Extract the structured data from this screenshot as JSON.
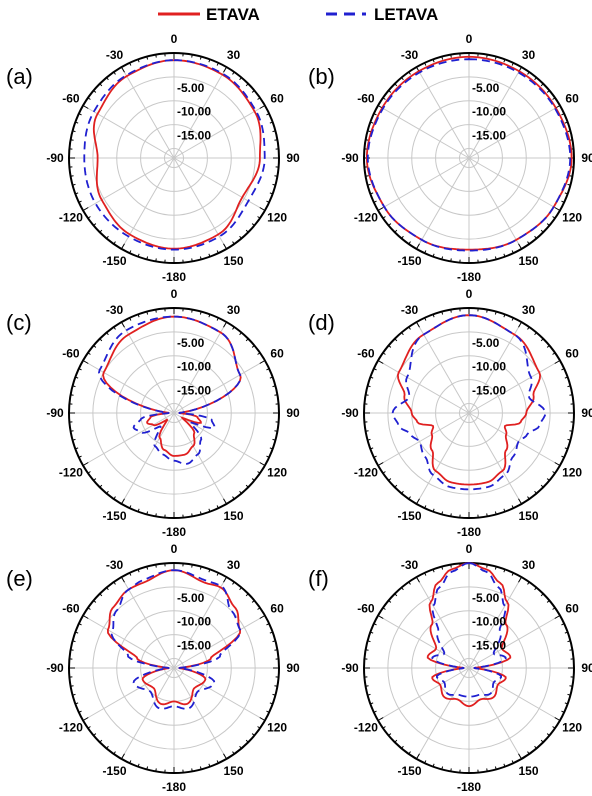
{
  "legend": [
    {
      "label": "ETAVA",
      "color": "#e02020",
      "dash": "solid"
    },
    {
      "label": "LETAVA",
      "color": "#2020d0",
      "dash": "dashed"
    }
  ],
  "chart_data": [
    {
      "type": "polar",
      "panel": "(a)",
      "angle_ticks": [
        "0",
        "30",
        "60",
        "90",
        "120",
        "150",
        "-180",
        "-150",
        "-120",
        "-90",
        "-60",
        "-30"
      ],
      "radial_tick_labels": [
        "-5.00",
        "-10.00",
        "-15.00"
      ],
      "rlim": [
        -22,
        0
      ],
      "theta": [
        0,
        30,
        60,
        90,
        120,
        150,
        180,
        -150,
        -120,
        -90,
        -60,
        -30
      ],
      "series": [
        {
          "name": "ETAVA",
          "r": [
            -1.5,
            -1.8,
            -2.5,
            -4,
            -5.5,
            -3.5,
            -3,
            -3.5,
            -4.5,
            -6,
            -3.5,
            -2.2
          ]
        },
        {
          "name": "LETAVA",
          "r": [
            -1.5,
            -1.6,
            -2.2,
            -3,
            -4,
            -3,
            -2.8,
            -3,
            -3,
            -3.2,
            -2.6,
            -2
          ]
        }
      ]
    },
    {
      "type": "polar",
      "panel": "(b)",
      "angle_ticks": [
        "0",
        "30",
        "60",
        "90",
        "120",
        "150",
        "-180",
        "-150",
        "-120",
        "-90",
        "-60",
        "-30"
      ],
      "radial_tick_labels": [
        "-5.00",
        "-10.00",
        "-15.00"
      ],
      "rlim": [
        -22,
        0
      ],
      "theta": [
        0,
        30,
        60,
        90,
        120,
        150,
        180,
        -150,
        -120,
        -90,
        -60,
        -30
      ],
      "series": [
        {
          "name": "ETAVA",
          "r": [
            -0.8,
            -1,
            -1,
            -0.5,
            -1.5,
            -2.2,
            -2.8,
            -2.2,
            -1.5,
            -0.6,
            -1,
            -1
          ]
        },
        {
          "name": "LETAVA",
          "r": [
            -1.3,
            -1.3,
            -1.2,
            -0.8,
            -1.5,
            -2.2,
            -2.6,
            -2.2,
            -1.5,
            -0.8,
            -1.2,
            -1.3
          ]
        }
      ]
    },
    {
      "type": "polar",
      "panel": "(c)",
      "angle_ticks": [
        "0",
        "30",
        "60",
        "90",
        "120",
        "150",
        "-180",
        "-150",
        "-120",
        "-90",
        "-60",
        "-30"
      ],
      "radial_tick_labels": [
        "-5.00",
        "-10.00",
        "-15.00"
      ],
      "rlim": [
        -22,
        0
      ],
      "theta": [
        0,
        30,
        60,
        90,
        100,
        110,
        120,
        135,
        150,
        165,
        180,
        -165,
        -150,
        -135,
        -120,
        -110,
        -100,
        -90,
        -60,
        -30
      ],
      "series": [
        {
          "name": "ETAVA",
          "r": [
            -1.8,
            -2.5,
            -6,
            -21,
            -17,
            -16,
            -20,
            -16,
            -14,
            -13,
            -13,
            -14,
            -16,
            -20,
            -17,
            -16,
            -17,
            -21,
            -5,
            -3
          ]
        },
        {
          "name": "LETAVA",
          "r": [
            -1.8,
            -2.5,
            -6,
            -21,
            -14,
            -13,
            -18,
            -14,
            -12,
            -11,
            -12,
            -13,
            -14,
            -18,
            -14,
            -13,
            -15,
            -21,
            -4,
            -2
          ]
        }
      ]
    },
    {
      "type": "polar",
      "panel": "(d)",
      "angle_ticks": [
        "0",
        "30",
        "60",
        "90",
        "120",
        "150",
        "-180",
        "-150",
        "-120",
        "-90",
        "-60",
        "-30"
      ],
      "radial_tick_labels": [
        "-5.00",
        "-10.00",
        "-15.00"
      ],
      "rlim": [
        -22,
        0
      ],
      "theta": [
        0,
        30,
        60,
        75,
        90,
        100,
        110,
        120,
        135,
        150,
        165,
        180,
        -165,
        -150,
        -135,
        -120,
        -110,
        -100,
        -90,
        -75,
        -60,
        -30
      ],
      "series": [
        {
          "name": "ETAVA",
          "r": [
            -1.5,
            -3,
            -5,
            -8,
            -10,
            -11,
            -14,
            -13,
            -11,
            -8,
            -7,
            -7,
            -7,
            -8,
            -11,
            -13,
            -14,
            -11,
            -10,
            -8,
            -5,
            -3
          ]
        },
        {
          "name": "LETAVA",
          "r": [
            -1.5,
            -3,
            -7,
            -9,
            -6,
            -7,
            -9,
            -10,
            -9,
            -7,
            -6,
            -6,
            -6,
            -7,
            -9,
            -10,
            -9,
            -7,
            -6,
            -9,
            -7,
            -3
          ]
        }
      ]
    },
    {
      "type": "polar",
      "panel": "(e)",
      "angle_ticks": [
        "0",
        "30",
        "60",
        "90",
        "120",
        "150",
        "-180",
        "-150",
        "-120",
        "-90",
        "-60",
        "-30"
      ],
      "radial_tick_labels": [
        "-5.00",
        "-10.00",
        "-15.00"
      ],
      "rlim": [
        -22,
        0
      ],
      "theta": [
        0,
        20,
        30,
        45,
        60,
        75,
        90,
        110,
        135,
        160,
        180,
        -160,
        -135,
        -110,
        -90,
        -75,
        -60,
        -45,
        -30,
        -20
      ],
      "series": [
        {
          "name": "ETAVA",
          "r": [
            -1.5,
            -3,
            -2.5,
            -4,
            -6,
            -14,
            -21,
            -15,
            -16,
            -14,
            -15,
            -14,
            -16,
            -15,
            -21,
            -14,
            -6,
            -4,
            -3,
            -3
          ]
        },
        {
          "name": "LETAVA",
          "r": [
            -1.5,
            -2.5,
            -2.2,
            -5,
            -6,
            -12,
            -21,
            -13,
            -15,
            -13,
            -14,
            -13,
            -15,
            -13,
            -21,
            -12,
            -7,
            -5,
            -3,
            -2.5
          ]
        }
      ]
    },
    {
      "type": "polar",
      "panel": "(f)",
      "angle_ticks": [
        "0",
        "30",
        "60",
        "90",
        "120",
        "150",
        "-180",
        "-150",
        "-120",
        "-90",
        "-60",
        "-30"
      ],
      "radial_tick_labels": [
        "-5.00",
        "-10.00",
        "-15.00"
      ],
      "rlim": [
        -22,
        0
      ],
      "theta": [
        0,
        10,
        20,
        30,
        40,
        60,
        75,
        90,
        105,
        120,
        140,
        160,
        180,
        -160,
        -140,
        -120,
        -105,
        -90,
        -75,
        -60,
        -40,
        -30,
        -20,
        -10
      ],
      "series": [
        {
          "name": "ETAVA",
          "r": [
            0,
            -1,
            -3,
            -6,
            -10,
            -14,
            -13,
            -21,
            -14,
            -15,
            -14,
            -15,
            -14,
            -15,
            -14,
            -15,
            -14,
            -21,
            -13,
            -14,
            -10,
            -6,
            -3,
            -1
          ]
        },
        {
          "name": "LETAVA",
          "r": [
            0,
            -1.5,
            -4,
            -7,
            -12,
            -16,
            -14,
            -21,
            -15,
            -16,
            -15,
            -16,
            -16,
            -16,
            -15,
            -16,
            -15,
            -21,
            -14,
            -16,
            -12,
            -7,
            -4,
            -1.5
          ]
        }
      ]
    }
  ]
}
